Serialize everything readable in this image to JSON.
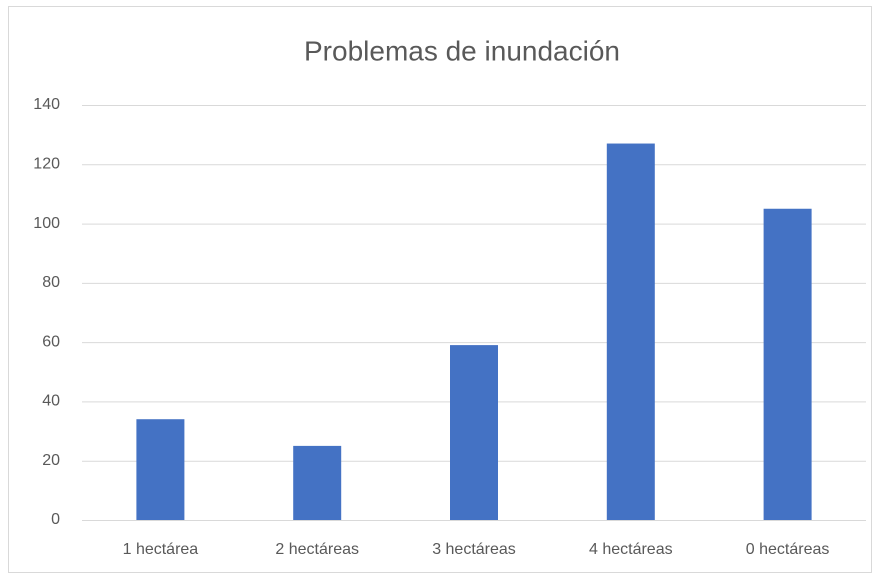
{
  "chart_data": {
    "type": "bar",
    "title": "Problemas de inundación",
    "categories": [
      "1 hectárea",
      "2 hectáreas",
      "3 hectáreas",
      "4 hectáreas",
      "0 hectáreas"
    ],
    "values": [
      34,
      25,
      59,
      127,
      105
    ],
    "color": "#4472c4",
    "ylim": [
      0,
      140
    ],
    "yticks": [
      0,
      20,
      40,
      60,
      80,
      100,
      120,
      140
    ],
    "grid": true
  }
}
